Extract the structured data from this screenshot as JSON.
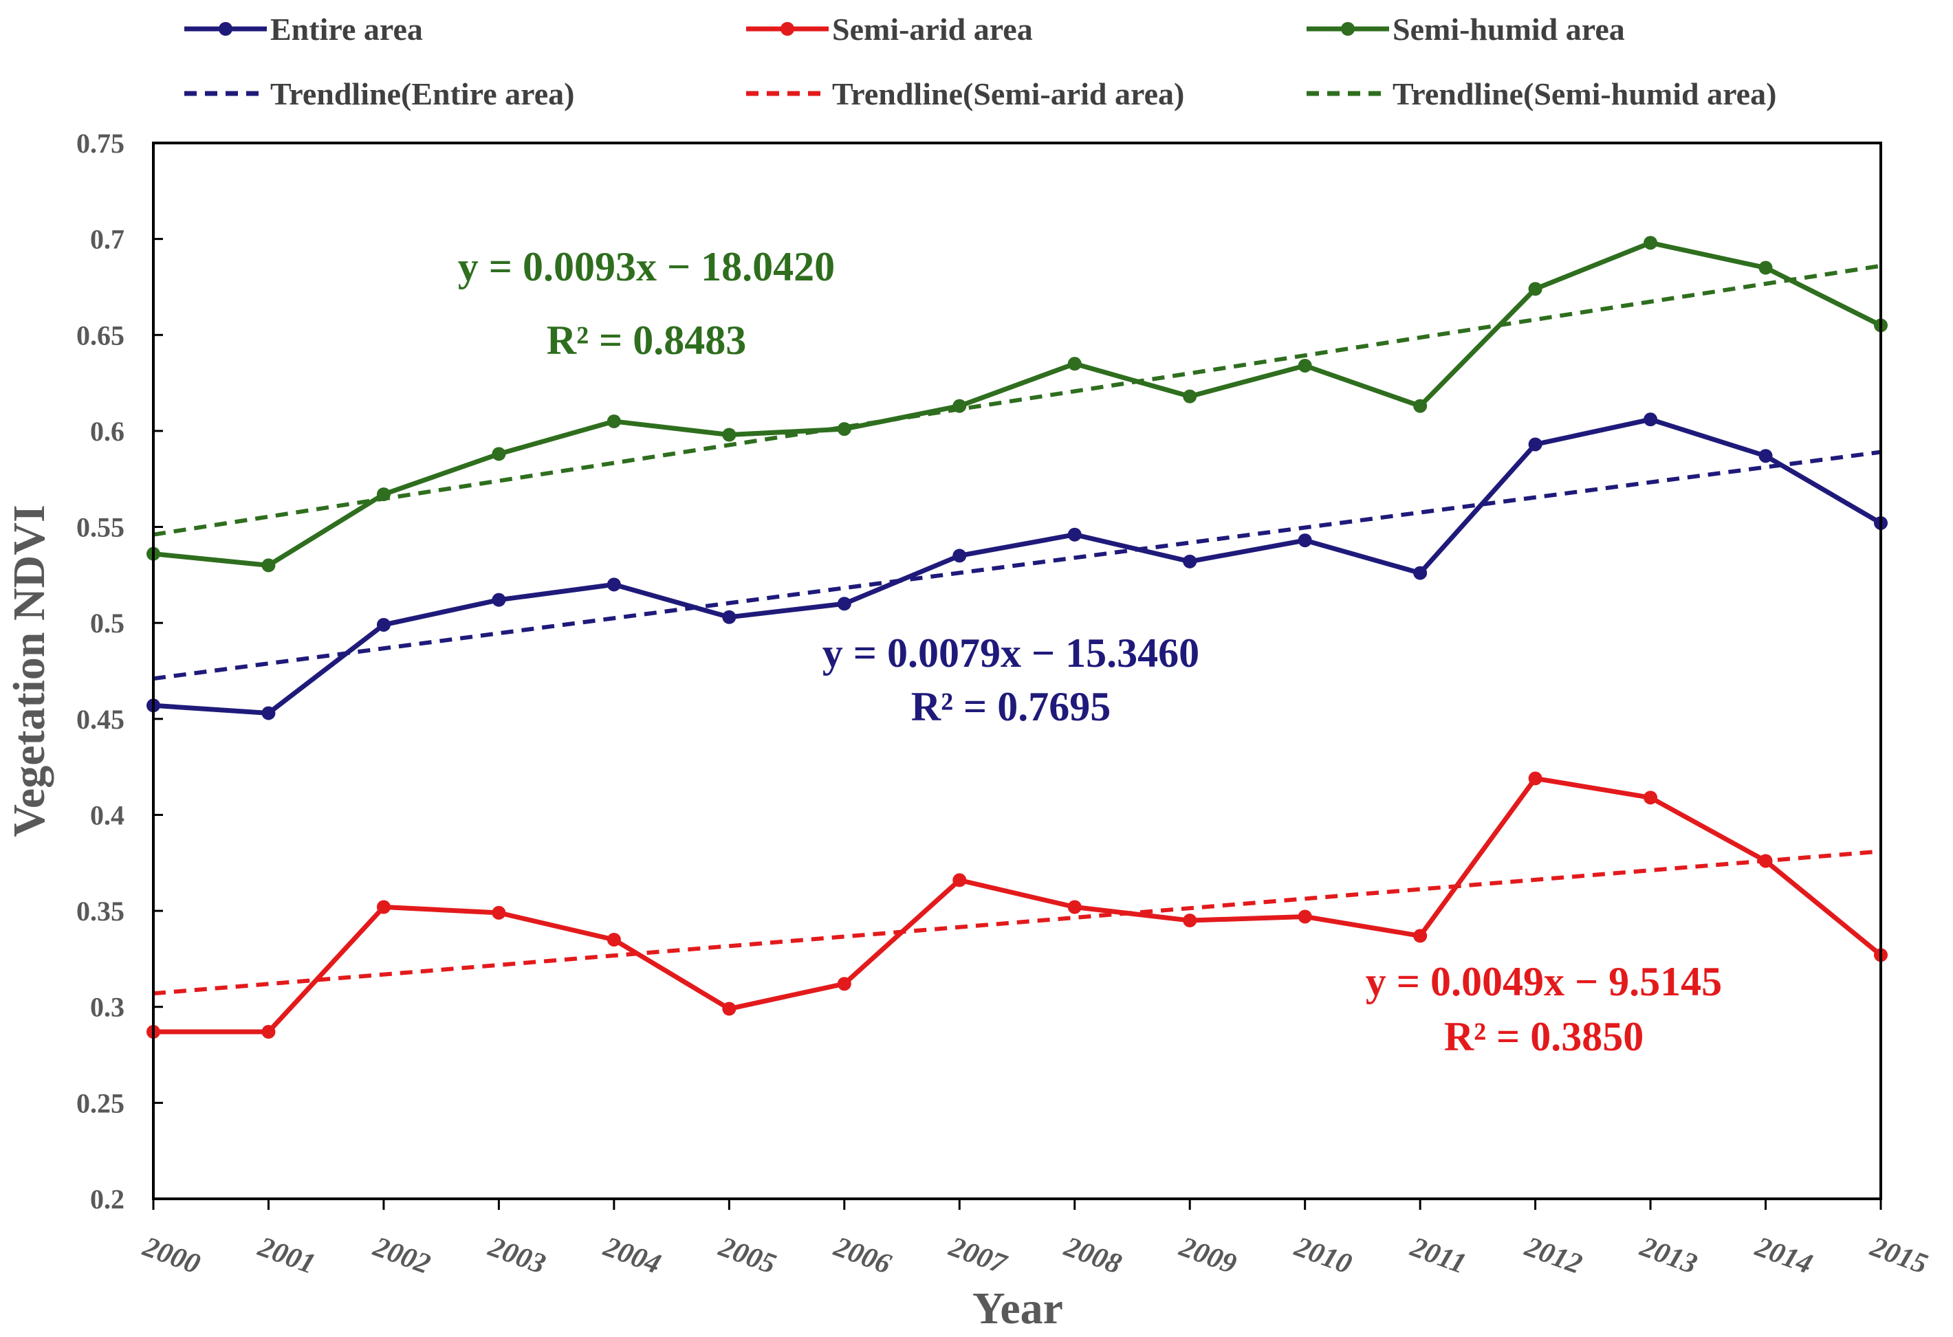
{
  "chart_data": {
    "type": "line",
    "title": "",
    "xlabel": "Year",
    "ylabel": "Vegetation NDVI",
    "x": [
      2000,
      2001,
      2002,
      2003,
      2004,
      2005,
      2006,
      2007,
      2008,
      2009,
      2010,
      2011,
      2012,
      2013,
      2014,
      2015
    ],
    "x_tick_labels": [
      "2000",
      "2001",
      "2002",
      "2003",
      "2004",
      "2005",
      "2006",
      "2007",
      "2008",
      "2009",
      "2010",
      "2011",
      "2012",
      "2013",
      "2014",
      "2015"
    ],
    "ylim": [
      0.2,
      0.75
    ],
    "y_ticks": [
      0.2,
      0.25,
      0.3,
      0.35,
      0.4,
      0.45,
      0.5,
      0.55,
      0.6,
      0.65,
      0.7,
      0.75
    ],
    "y_tick_labels": [
      "0.2",
      "0.25",
      "0.3",
      "0.35",
      "0.4",
      "0.45",
      "0.5",
      "0.55",
      "0.6",
      "0.65",
      "0.7",
      "0.75"
    ],
    "grid": false,
    "legend_position": "top",
    "series": [
      {
        "name": "Entire area",
        "color": "#1f1a7a",
        "values": [
          0.457,
          0.453,
          0.499,
          0.512,
          0.52,
          0.503,
          0.51,
          0.535,
          0.546,
          0.532,
          0.543,
          0.526,
          0.593,
          0.606,
          0.587,
          0.552
        ]
      },
      {
        "name": "Semi-arid area",
        "color": "#e31a1c",
        "values": [
          0.287,
          0.287,
          0.352,
          0.349,
          0.335,
          0.299,
          0.312,
          0.366,
          0.352,
          0.345,
          0.347,
          0.337,
          0.419,
          0.409,
          0.376,
          0.327
        ]
      },
      {
        "name": "Semi-humid area",
        "color": "#2e6e1e",
        "values": [
          0.536,
          0.53,
          0.567,
          0.588,
          0.605,
          0.598,
          0.601,
          0.613,
          0.635,
          0.618,
          0.634,
          0.613,
          0.674,
          0.698,
          0.685,
          0.655
        ]
      }
    ],
    "trendlines": [
      {
        "name": "Trendline(Entire area)",
        "color": "#1f1a7a",
        "start": [
          2000,
          0.471
        ],
        "end": [
          2015,
          0.589
        ],
        "equation": "y = 0.0079x − 15.3460",
        "r2": "R² = 0.7695"
      },
      {
        "name": "Trendline(Semi-arid area)",
        "color": "#e31a1c",
        "start": [
          2000,
          0.307
        ],
        "end": [
          2015,
          0.381
        ],
        "equation": "y = 0.0049x − 9.5145",
        "r2": "R² = 0.3850"
      },
      {
        "name": "Trendline(Semi-humid area)",
        "color": "#2e6e1e",
        "start": [
          2000,
          0.546
        ],
        "end": [
          2015,
          0.686
        ],
        "equation": "y = 0.0093x − 18.0420",
        "r2": "R² = 0.8483"
      }
    ],
    "legend": [
      "Entire area",
      "Semi-arid area",
      "Semi-humid area",
      "Trendline(Entire area)",
      "Trendline(Semi-arid area)",
      "Trendline(Semi-humid area)"
    ]
  }
}
